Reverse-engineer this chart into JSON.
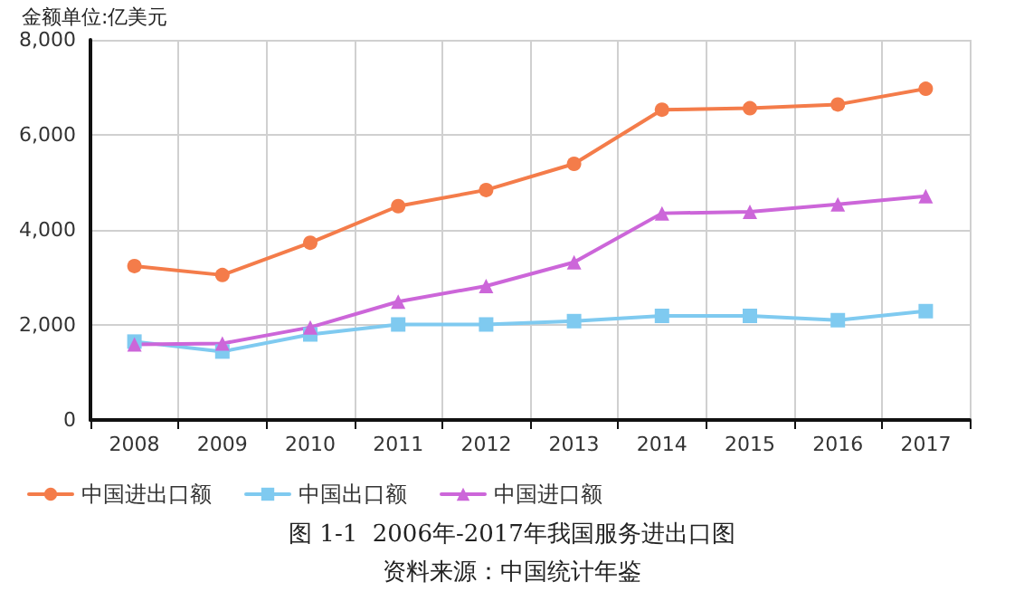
{
  "chart_data": {
    "type": "line",
    "title": "图 1-1  2006年-2017年我国服务进出口图",
    "ylabel": "金额单位:亿美元",
    "annotations": [
      "资料来源：中国统计年鉴"
    ],
    "categories": [
      "2008",
      "2009",
      "2010",
      "2011",
      "2012",
      "2013",
      "2014",
      "2015",
      "2016",
      "2017"
    ],
    "series": [
      {
        "name": "中国进出口额",
        "color": "#f47c4a",
        "marker": "circle",
        "values": [
          3240,
          3050,
          3730,
          4500,
          4840,
          5390,
          6530,
          6560,
          6640,
          6970
        ]
      },
      {
        "name": "中国出口额",
        "color": "#7fcaf0",
        "marker": "square",
        "values": [
          1650,
          1440,
          1800,
          2010,
          2010,
          2080,
          2190,
          2190,
          2100,
          2290
        ]
      },
      {
        "name": "中国进口额",
        "color": "#cc66d9",
        "marker": "triangle",
        "values": [
          1590,
          1610,
          1950,
          2490,
          2820,
          3320,
          4350,
          4380,
          4540,
          4710
        ]
      }
    ],
    "ylim": [
      0,
      8000
    ],
    "yticks": [
      {
        "value": 0,
        "label": "0"
      },
      {
        "value": 2000,
        "label": "2,000"
      },
      {
        "value": 4000,
        "label": "4,000"
      },
      {
        "value": 6000,
        "label": "6,000"
      },
      {
        "value": 8000,
        "label": "8,000"
      }
    ],
    "grid": true,
    "legend": "bottom left"
  }
}
